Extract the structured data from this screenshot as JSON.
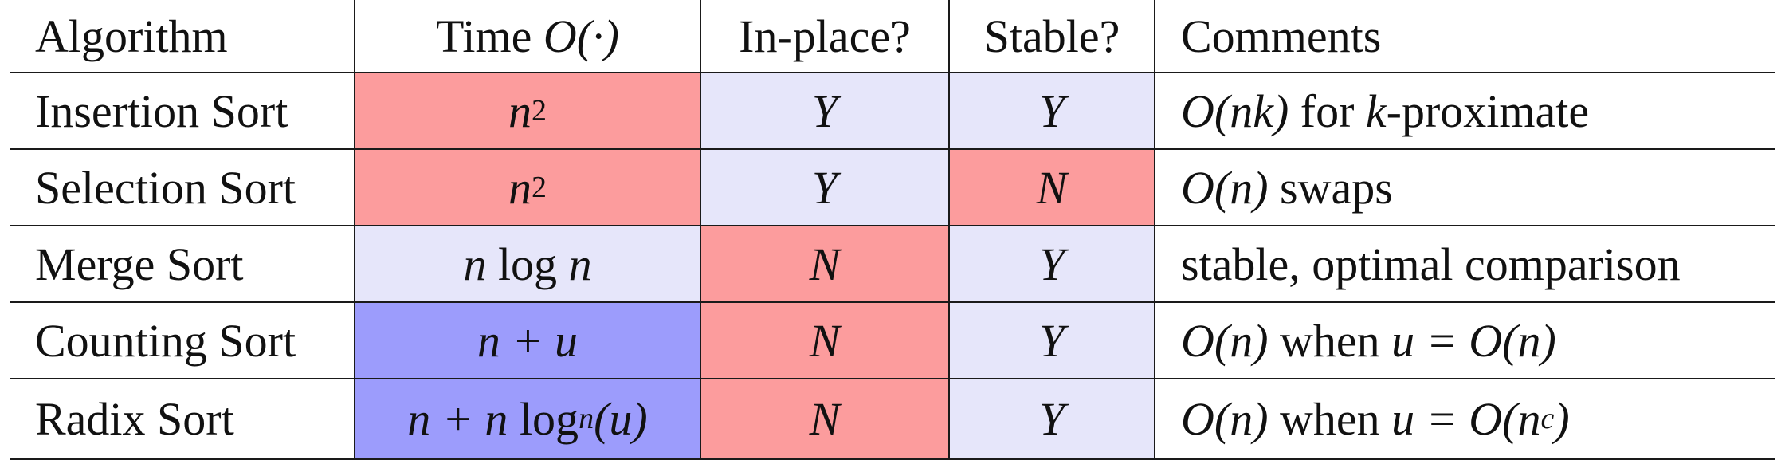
{
  "table": {
    "headers": {
      "algorithm": "Algorithm",
      "time_prefix": "Time ",
      "time_math": "O(·)",
      "inplace": "In-place?",
      "stable": "Stable?",
      "comments": "Comments"
    },
    "rows": [
      {
        "algorithm": "Insertion Sort",
        "time_base": "n",
        "time_sup": "2",
        "inplace": "Y",
        "stable": "Y",
        "comment_pre": "O(nk)",
        "comment_mid": " for ",
        "comment_var": "k",
        "comment_post": "-proximate"
      },
      {
        "algorithm": "Selection Sort",
        "time_base": "n",
        "time_sup": "2",
        "inplace": "Y",
        "stable": "N",
        "comment_pre": "O(n)",
        "comment_post": " swaps"
      },
      {
        "algorithm": "Merge Sort",
        "time_a": "n",
        "time_log": " log ",
        "time_b": "n",
        "inplace": "N",
        "stable": "Y",
        "comment": "stable, optimal comparison"
      },
      {
        "algorithm": "Counting Sort",
        "time_expr": "n + u",
        "inplace": "N",
        "stable": "Y",
        "comment_pre": "O(n)",
        "comment_mid": " when ",
        "comment_eq": "u = O(n)"
      },
      {
        "algorithm": "Radix Sort",
        "time_a": "n + n",
        "time_log": " log",
        "time_sub": "n",
        "time_b": "(u)",
        "inplace": "N",
        "stable": "Y",
        "comment_pre": "O(n)",
        "comment_mid": " when ",
        "comment_eq": "u = O(n",
        "comment_sup": "c",
        "comment_close": ")"
      }
    ]
  },
  "colors": {
    "red": "#FC9C9D",
    "pale_blue": "#E6E6FA",
    "blue": "#9C9CFC"
  }
}
